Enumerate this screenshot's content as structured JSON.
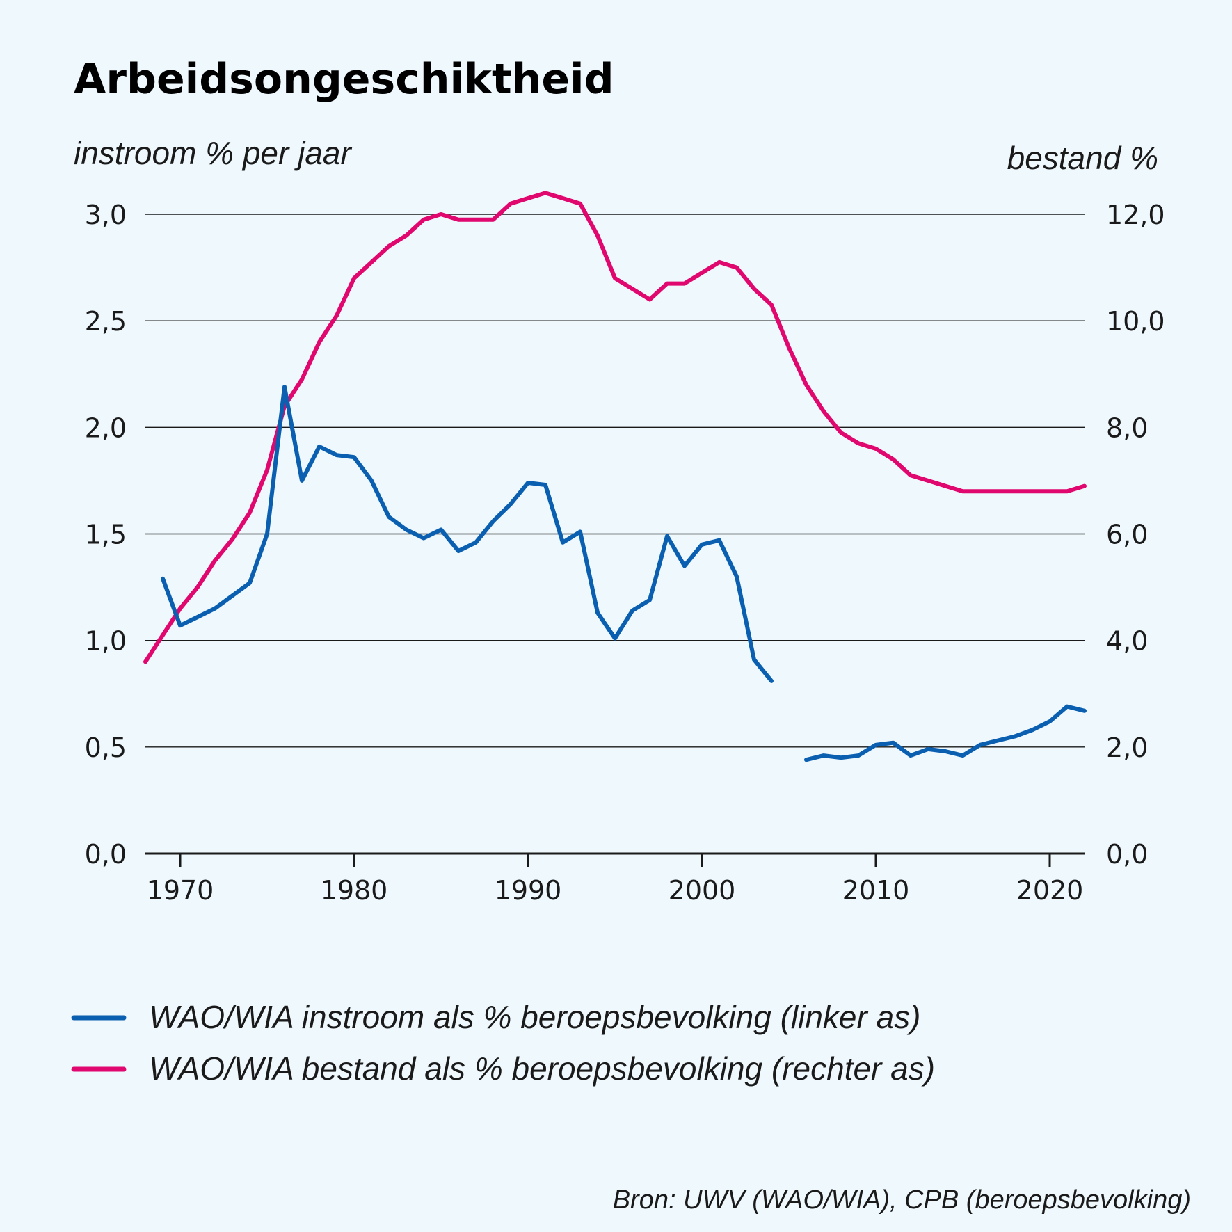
{
  "chart_data": {
    "type": "line",
    "title": "Arbeidsongeschiktheid",
    "ylabel_left": "instroom % per jaar",
    "ylabel_right": "bestand %",
    "ylim_left": [
      0,
      3
    ],
    "ylim_right": [
      0,
      12
    ],
    "yticks_left": [
      "0,0",
      "0,5",
      "1,0",
      "1,5",
      "2,0",
      "2,5",
      "3,0"
    ],
    "yticks_right": [
      "0,0",
      "2,0",
      "4,0",
      "6,0",
      "8,0",
      "10,0",
      "12,0"
    ],
    "xlim": [
      1968,
      2022
    ],
    "xticks": [
      "1970",
      "1980",
      "1990",
      "2000",
      "2010",
      "2020"
    ],
    "grid": true,
    "legend_position": "bottom",
    "series": [
      {
        "name": "WAO/WIA instroom als % beroepsbevolking (linker as)",
        "axis": "left",
        "color": "#0a5fb0",
        "segments": [
          {
            "x": [
              1969,
              1970,
              1971,
              1972,
              1973,
              1974,
              1975,
              1976,
              1977,
              1978,
              1979,
              1980,
              1981,
              1982,
              1983,
              1984,
              1985,
              1986,
              1987,
              1988,
              1989,
              1990,
              1991,
              1992,
              1993,
              1994,
              1995,
              1996,
              1997,
              1998,
              1999,
              2000,
              2001,
              2002,
              2003,
              2004
            ],
            "values": [
              1.29,
              1.07,
              1.11,
              1.15,
              1.21,
              1.27,
              1.5,
              2.19,
              1.75,
              1.91,
              1.87,
              1.86,
              1.75,
              1.58,
              1.52,
              1.48,
              1.52,
              1.42,
              1.46,
              1.56,
              1.64,
              1.74,
              1.73,
              1.46,
              1.51,
              1.13,
              1.01,
              1.14,
              1.19,
              1.49,
              1.35,
              1.45,
              1.47,
              1.3,
              0.91,
              0.81
            ]
          },
          {
            "x": [
              2006,
              2007,
              2008,
              2009,
              2010,
              2011,
              2012,
              2013,
              2014,
              2015,
              2016,
              2017,
              2018,
              2019,
              2020,
              2021,
              2022
            ],
            "values": [
              0.44,
              0.46,
              0.45,
              0.46,
              0.51,
              0.52,
              0.46,
              0.49,
              0.48,
              0.46,
              0.51,
              0.53,
              0.55,
              0.58,
              0.62,
              0.69,
              0.67
            ]
          }
        ]
      },
      {
        "name": "WAO/WIA bestand als % beroepsbevolking (rechter as)",
        "axis": "right",
        "color": "#e0076e",
        "segments": [
          {
            "x": [
              1968,
              1969,
              1970,
              1971,
              1972,
              1973,
              1974,
              1975,
              1976,
              1977,
              1978,
              1979,
              1980,
              1981,
              1982,
              1983,
              1984,
              1985,
              1986,
              1987,
              1988,
              1989,
              1990,
              1991,
              1992,
              1993,
              1994,
              1995,
              1996,
              1997,
              1998,
              1999,
              2000,
              2001,
              2002,
              2003,
              2004,
              2005,
              2006,
              2007,
              2008,
              2009,
              2010,
              2011,
              2012,
              2013,
              2014,
              2015,
              2016,
              2017,
              2018,
              2019,
              2020,
              2021,
              2022
            ],
            "values": [
              3.6,
              4.1,
              4.6,
              5.0,
              5.5,
              5.9,
              6.4,
              7.2,
              8.4,
              8.9,
              9.6,
              10.1,
              10.8,
              11.1,
              11.4,
              11.6,
              11.9,
              12.0,
              11.9,
              11.9,
              11.9,
              12.2,
              12.3,
              12.4,
              12.3,
              12.2,
              11.6,
              10.8,
              10.6,
              10.4,
              10.7,
              10.7,
              10.9,
              11.1,
              11.0,
              10.6,
              10.3,
              9.5,
              8.8,
              8.3,
              7.9,
              7.7,
              7.6,
              7.4,
              7.1,
              7.0,
              6.9,
              6.8,
              6.8,
              6.8,
              6.8,
              6.8,
              6.8,
              6.8,
              6.9
            ]
          }
        ]
      }
    ],
    "source": "Bron: UWV (WAO/WIA), CPB (beroepsbevolking)"
  }
}
